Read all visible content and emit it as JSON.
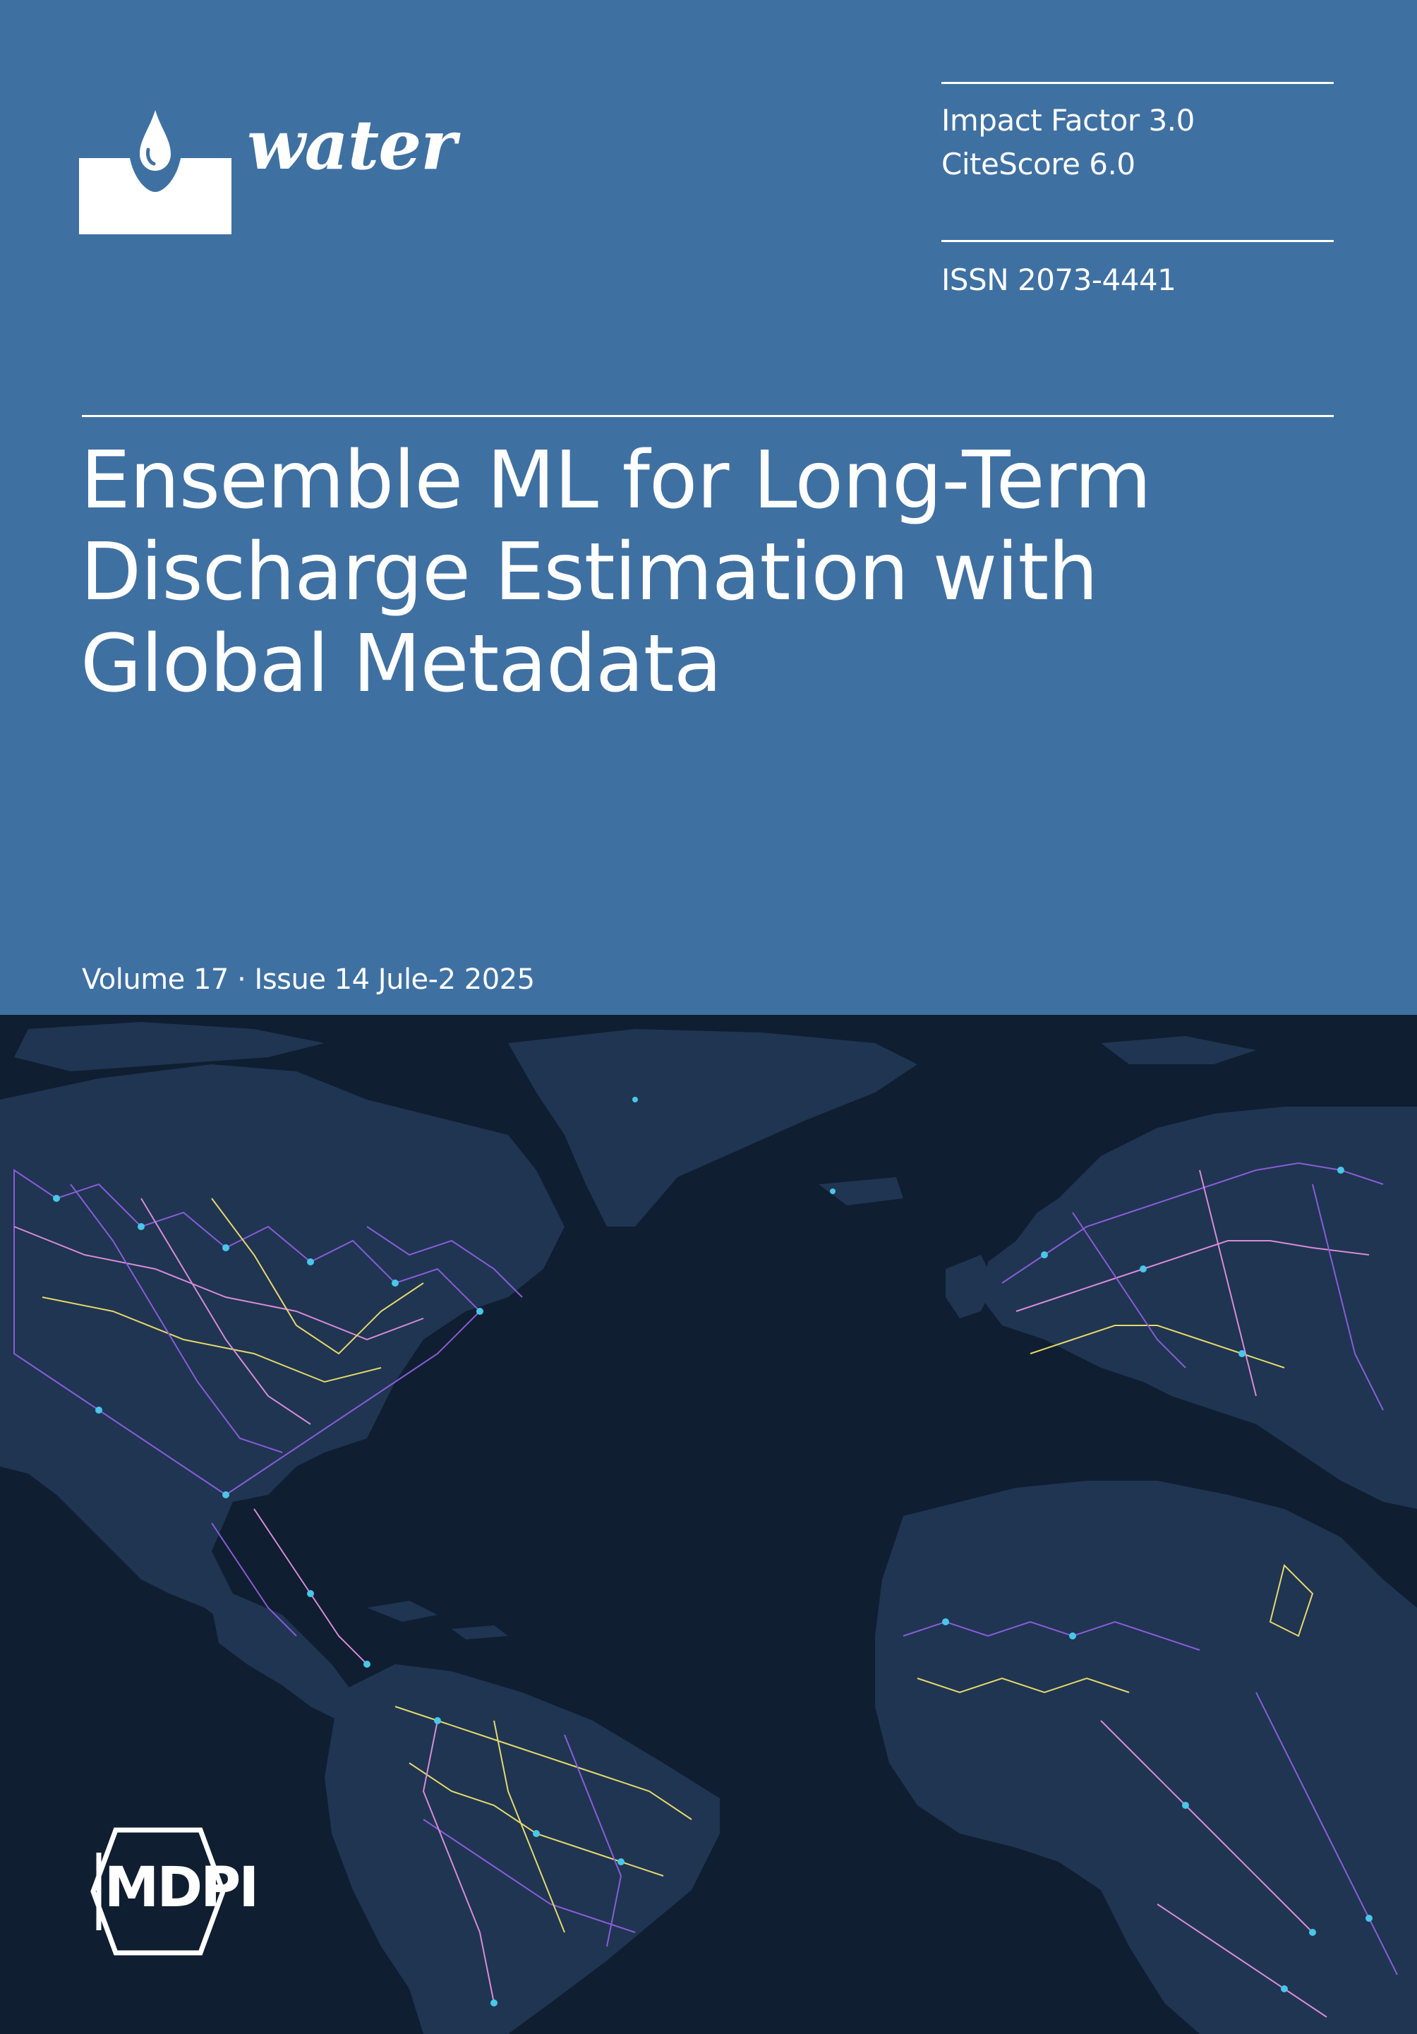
{
  "journal": {
    "name": "water",
    "impact_factor": "Impact Factor 3.0",
    "citescore": "CiteScore 6.0",
    "issn": "ISSN 2073-4441"
  },
  "article": {
    "title_lines": [
      "Ensemble ML for Long-Term",
      "Discharge Estimation with",
      "Global Metadata"
    ]
  },
  "issue": {
    "volume_line": "Volume 17 · Issue 14 Jule-2 2025"
  },
  "publisher": {
    "name": "MDPI"
  },
  "colors": {
    "cover_blue": "#3f70a2",
    "ocean": "#0f1e30",
    "land": "#1f3552",
    "network_purple": "#8a5cd8",
    "network_yellow": "#e6d86a",
    "network_cyan": "#49c7e8",
    "network_pink": "#d98ad8"
  },
  "icons": {
    "journal_logo": "water-drop-icon",
    "publisher_logo": "hexagon-logo-icon"
  }
}
